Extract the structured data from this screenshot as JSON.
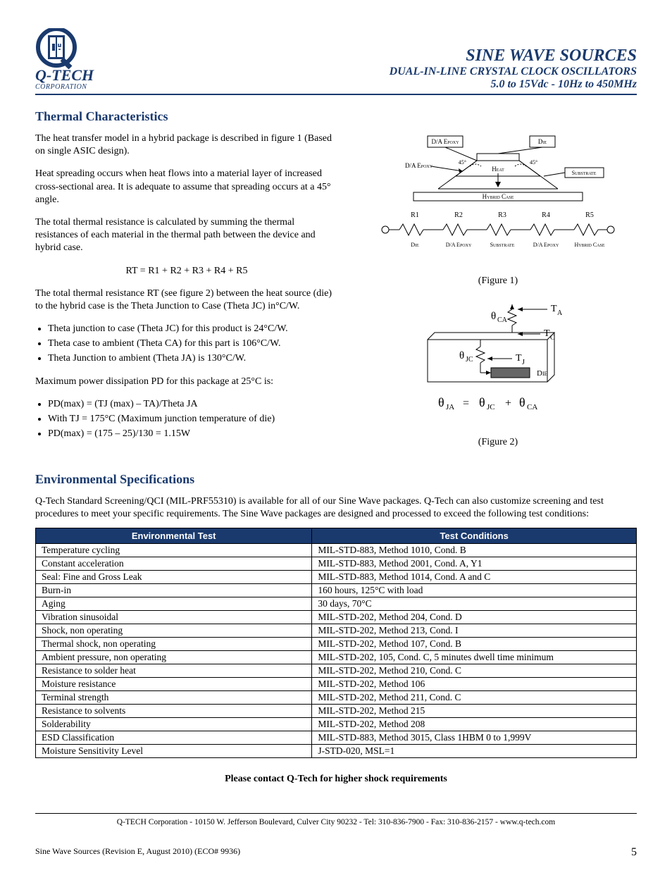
{
  "header": {
    "logo_text": "Q-TECH",
    "logo_sub": "CORPORATION",
    "title": "SINE WAVE SOURCES",
    "sub1": "DUAL-IN-LINE CRYSTAL CLOCK OSCILLATORS",
    "sub2": "5.0 to 15Vdc  -  10Hz  to  450MHz"
  },
  "thermal": {
    "heading": "Thermal Characteristics",
    "p1": "The heat transfer model in a hybrid package is described in figure 1 (Based on single ASIC design).",
    "p2": "Heat spreading occurs when heat flows into a material layer of increased cross-sectional area.  It is adequate to assume that spreading occurs at a 45° angle.",
    "p3": "The total thermal resistance is calculated by summing the thermal resistances of each material in the thermal path between the device and hybrid case.",
    "formula": "RT = R1 + R2 + R3 + R4 + R5",
    "p4": "The total thermal resistance RT (see figure 2) between the heat source (die) to the hybrid case is the Theta Junction to Case (Theta JC) in°C/W.",
    "b1": "Theta junction to case (Theta JC) for this product is 24°C/W.",
    "b2": "Theta case to ambient (Theta CA) for this part is 106°C/W.",
    "b3": "Theta Junction to ambient (Theta JA) is 130°C/W.",
    "p5": "Maximum power dissipation PD for this package at 25°C is:",
    "b4": "PD(max) = (TJ (max) – TA)/Theta JA",
    "b5": "With TJ = 175°C (Maximum junction temperature of die)",
    "b6": "PD(max) = (175 – 25)/130 = 1.15W",
    "fig1_caption": "(Figure 1)",
    "fig2_caption": "(Figure 2)"
  },
  "fig1": {
    "labels": {
      "da_epoxy": "D/A Epoxy",
      "die": "Die",
      "heat": "Heat",
      "substrate": "Substrate",
      "hybrid_case": "Hybrid Case",
      "angle": "45°",
      "r1": "R1",
      "r2": "R2",
      "r3": "R3",
      "r4": "R4",
      "r5": "R5"
    }
  },
  "fig2": {
    "labels": {
      "theta_ca": "θ",
      "ca_sub": "CA",
      "theta_jc": "θ",
      "jc_sub": "JC",
      "ta": "T",
      "ta_sub": "A",
      "tc": "T",
      "tc_sub": "C",
      "tj": "T",
      "tj_sub": "J",
      "die": "Die",
      "eq": "θ",
      "ja_sub": "JA",
      "equals": "=",
      "plus": "+"
    }
  },
  "env": {
    "heading": "Environmental Specifications",
    "intro": "Q-Tech Standard Screening/QCI (MIL-PRF55310) is available for all of our Sine Wave packages.  Q-Tech can also customize screening and test procedures to meet your specific requirements.  The Sine Wave packages are designed and processed to exceed the following test conditions:",
    "col1": "Environmental Test",
    "col2": "Test Conditions",
    "rows": [
      [
        "Temperature cycling",
        "MIL-STD-883, Method 1010, Cond. B"
      ],
      [
        "Constant acceleration",
        "MIL-STD-883, Method 2001, Cond. A, Y1"
      ],
      [
        "Seal:  Fine and Gross Leak",
        "MIL-STD-883, Method 1014, Cond. A and C"
      ],
      [
        "Burn-in",
        "160 hours, 125°C with load"
      ],
      [
        "Aging",
        "30 days, 70°C"
      ],
      [
        "Vibration sinusoidal",
        "MIL-STD-202, Method 204, Cond. D"
      ],
      [
        "Shock, non operating",
        "MIL-STD-202, Method 213, Cond. I"
      ],
      [
        "Thermal shock, non operating",
        "MIL-STD-202, Method 107, Cond. B"
      ],
      [
        "Ambient pressure, non operating",
        "MIL-STD-202, 105, Cond. C, 5 minutes dwell time minimum"
      ],
      [
        "Resistance to solder heat",
        "MIL-STD-202, Method 210, Cond. C"
      ],
      [
        "Moisture resistance",
        "MIL-STD-202, Method 106"
      ],
      [
        "Terminal strength",
        "MIL-STD-202, Method 211, Cond. C"
      ],
      [
        "Resistance to solvents",
        "MIL-STD-202, Method 215"
      ],
      [
        "Solderability",
        "MIL-STD-202, Method 208"
      ],
      [
        "ESD Classification",
        "MIL-STD-883, Method 3015, Class 1HBM 0 to 1,999V"
      ],
      [
        "Moisture Sensitivity Level",
        "J-STD-020, MSL=1"
      ]
    ]
  },
  "contact": "Please contact Q-Tech for higher shock requirements",
  "footer": {
    "addr": "Q-TECH Corporation  -  10150 W. Jefferson Boulevard, Culver City 90232  -  Tel:  310-836-7900  -  Fax:  310-836-2157  -  www.q-tech.com",
    "rev": "Sine Wave Sources  (Revision E, August 2010) (ECO# 9936)",
    "page": "5"
  }
}
